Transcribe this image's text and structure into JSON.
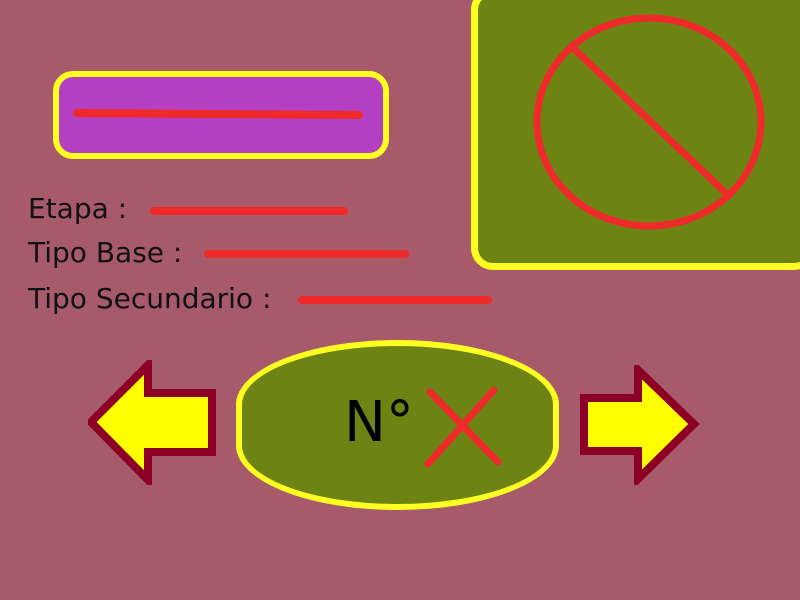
{
  "fields": [
    {
      "label": "Etapa :"
    },
    {
      "label": "Tipo Base :"
    },
    {
      "label": "Tipo Secundario :"
    }
  ],
  "number_display": {
    "prefix": "N°"
  },
  "icons": {
    "image_placeholder": "no-image-icon",
    "number_value": "cross-icon",
    "prev": "arrow-left-icon",
    "next": "arrow-right-icon"
  },
  "colors": {
    "background": "#a65a6a",
    "name_box": "#b53fc2",
    "panel": "#6d8414",
    "border": "#ffff22",
    "placeholder": "#ee2a2a",
    "arrow_fill": "#ffff00",
    "arrow_outline": "#8b0024"
  }
}
